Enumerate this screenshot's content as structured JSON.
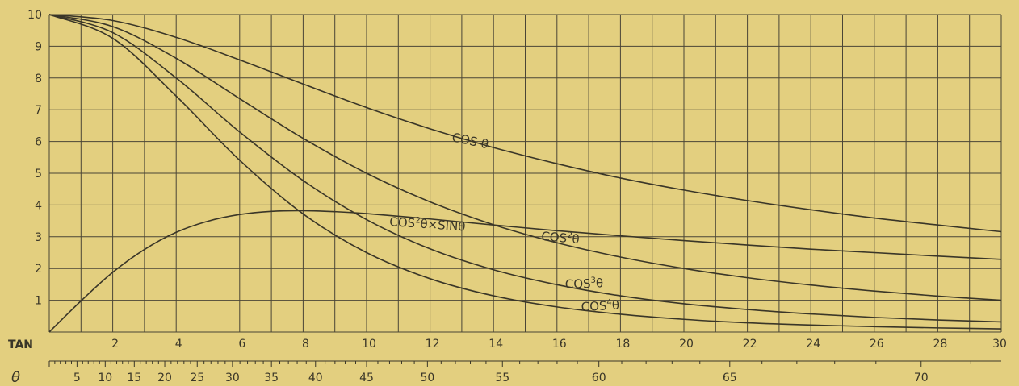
{
  "chart_data": {
    "type": "line",
    "title": "",
    "xlabel": "TAN",
    "ylabel": "",
    "xlim": [
      0,
      30
    ],
    "ylim": [
      0,
      10
    ],
    "grid": true,
    "x_ticks": [
      2,
      4,
      6,
      8,
      10,
      12,
      14,
      16,
      18,
      20,
      22,
      24,
      26,
      28,
      30
    ],
    "y_ticks": [
      1,
      2,
      3,
      4,
      5,
      6,
      7,
      8,
      9,
      10
    ],
    "theta_axis_label": "θ",
    "theta_ticks": [
      5,
      10,
      15,
      20,
      25,
      30,
      35,
      40,
      45,
      50,
      55,
      60,
      65,
      70
    ],
    "series": [
      {
        "name": "COS θ",
        "label_parts": [
          "COS θ"
        ],
        "x": [
          0,
          2,
          4,
          6,
          8,
          10,
          12,
          14,
          16,
          18,
          20,
          22,
          24,
          26,
          28,
          30
        ],
        "y": [
          10,
          9.81,
          9.28,
          8.57,
          7.81,
          7.07,
          6.4,
          5.81,
          5.3,
          4.85,
          4.47,
          4.14,
          3.85,
          3.59,
          3.37,
          3.16
        ]
      },
      {
        "name": "COS²θ",
        "label_parts": [
          "COS",
          "2",
          "θ"
        ],
        "x": [
          0,
          2,
          4,
          6,
          8,
          10,
          12,
          14,
          16,
          18,
          20,
          22,
          24,
          26,
          28,
          30
        ],
        "y": [
          10,
          9.62,
          8.62,
          7.35,
          6.1,
          5.0,
          4.1,
          3.38,
          2.81,
          2.36,
          2.0,
          1.71,
          1.48,
          1.29,
          1.13,
          1.0
        ]
      },
      {
        "name": "COS³θ",
        "label_parts": [
          "COS",
          "3",
          "θ"
        ],
        "x": [
          0,
          2,
          4,
          6,
          8,
          10,
          12,
          14,
          16,
          18,
          20,
          22,
          24,
          26,
          28,
          30
        ],
        "y": [
          10,
          9.43,
          8.0,
          6.3,
          4.77,
          3.54,
          2.62,
          1.96,
          1.49,
          1.14,
          0.89,
          0.71,
          0.57,
          0.46,
          0.38,
          0.32
        ]
      },
      {
        "name": "COS⁴θ",
        "label_parts": [
          "COS",
          "4",
          "θ"
        ],
        "x": [
          0,
          2,
          4,
          6,
          8,
          10,
          12,
          14,
          16,
          18,
          20,
          22,
          24,
          26,
          28,
          30
        ],
        "y": [
          10,
          9.25,
          7.43,
          5.41,
          3.72,
          2.5,
          1.68,
          1.14,
          0.79,
          0.56,
          0.4,
          0.29,
          0.22,
          0.17,
          0.13,
          0.1
        ]
      },
      {
        "name": "COS²θ×SINθ",
        "label_parts": [
          "COS",
          "2",
          "θ×SINθ"
        ],
        "x": [
          0,
          1,
          2,
          3,
          4,
          5,
          6,
          7,
          8,
          9,
          10,
          12,
          14,
          16,
          18,
          20,
          22,
          24,
          26,
          28,
          30
        ],
        "y": [
          0,
          0.98,
          1.88,
          2.6,
          3.14,
          3.49,
          3.7,
          3.8,
          3.82,
          3.79,
          3.73,
          3.56,
          3.37,
          3.19,
          3.03,
          2.88,
          2.74,
          2.61,
          2.5,
          2.39,
          2.29
        ]
      }
    ]
  }
}
